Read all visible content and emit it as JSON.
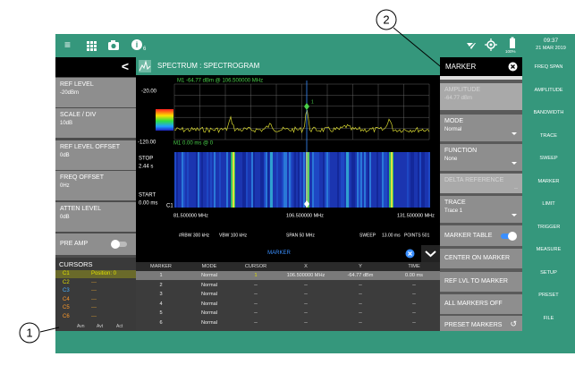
{
  "status_bar": {
    "notification_count": "6",
    "battery": "100%",
    "time": "09:37",
    "date": "21 MAR 2019"
  },
  "left_panel": {
    "buttons": [
      {
        "label": "REF LEVEL",
        "value": "-20dBm"
      },
      {
        "label": "SCALE / DIV",
        "value": "10dB"
      },
      {
        "label": "REF LEVEL OFFSET",
        "value": "0dB"
      },
      {
        "label": "FREQ OFFSET",
        "value": "0Hz"
      },
      {
        "label": "ATTEN LEVEL",
        "value": "0dB"
      }
    ],
    "pre_amp": {
      "label": "PRE AMP",
      "on": false
    },
    "cursors": {
      "title": "CURSORS",
      "rows": [
        {
          "name": "C1",
          "value": "Position: 0"
        },
        {
          "name": "C2",
          "value": "---"
        },
        {
          "name": "C3",
          "value": "---"
        },
        {
          "name": "C4",
          "value": "---"
        },
        {
          "name": "C5",
          "value": "---"
        },
        {
          "name": "C6",
          "value": "---"
        }
      ],
      "footer": [
        "Avn",
        "Avt",
        "Act"
      ]
    }
  },
  "spectrum": {
    "title": "SPECTRUM : SPECTROGRAM",
    "marker_readout": "M1  -64.77 dBm @ 106.500000 MHz",
    "top_level": "-20.00",
    "bottom_level": "-120.00",
    "marker_label": "1",
    "spectrogram_readout": "M1  0.00 ms @ 0",
    "stop_label": "STOP",
    "stop_time": "2.44 s",
    "start_label": "START",
    "start_time": "0.00 ms",
    "cursor_label": "C1",
    "freq_labels": [
      "81.500000 MHz",
      "106.500000 MHz",
      "131.500000 MHz"
    ],
    "settings": [
      "#RBW 300 kHz",
      "VBW 100 kHz",
      "SPAN 50 MHz",
      "SWEEP",
      "13.00 ms",
      "POINTS 501"
    ]
  },
  "marker_table": {
    "title": "MARKER",
    "columns": [
      "MARKER",
      "MODE",
      "CURSOR",
      "X",
      "Y",
      "TIME"
    ],
    "rows": [
      [
        "1",
        "Normal",
        "1",
        "106.500000 MHz",
        "-64.77 dBm",
        "0.00 ms"
      ],
      [
        "2",
        "Normal",
        "--",
        "--",
        "--",
        "--"
      ],
      [
        "3",
        "Normal",
        "--",
        "--",
        "--",
        "--"
      ],
      [
        "4",
        "Normal",
        "--",
        "--",
        "--",
        "--"
      ],
      [
        "5",
        "Normal",
        "--",
        "--",
        "--",
        "--"
      ],
      [
        "6",
        "Normal",
        "--",
        "--",
        "--",
        "--"
      ]
    ]
  },
  "marker_panel": {
    "title": "MARKER",
    "items": [
      {
        "label": "AMPLITUDE",
        "value": "-64.77 dBm",
        "disabled": true
      },
      {
        "label": "MODE",
        "value": "Normal",
        "dropdown": true
      },
      {
        "label": "FUNCTION",
        "value": "None",
        "dropdown": true
      },
      {
        "label": "DELTA REFERENCE",
        "value": "--",
        "disabled": true
      },
      {
        "label": "TRACE",
        "value": "Trace 1",
        "dropdown": true
      }
    ],
    "marker_table_toggle": {
      "label": "MARKER TABLE",
      "on": true
    },
    "actions": [
      "CENTER ON MARKER",
      "REF LVL TO MARKER",
      "ALL MARKERS OFF",
      "PRESET MARKERS"
    ]
  },
  "side_menu": [
    "FREQ SPAN",
    "AMPLITUDE",
    "BANDWIDTH",
    "TRACE",
    "SWEEP",
    "MARKER",
    "LIMIT",
    "TRIGGER",
    "MEASURE",
    "SETUP",
    "PRESET",
    "FILE"
  ],
  "callouts": [
    "1",
    "2"
  ]
}
